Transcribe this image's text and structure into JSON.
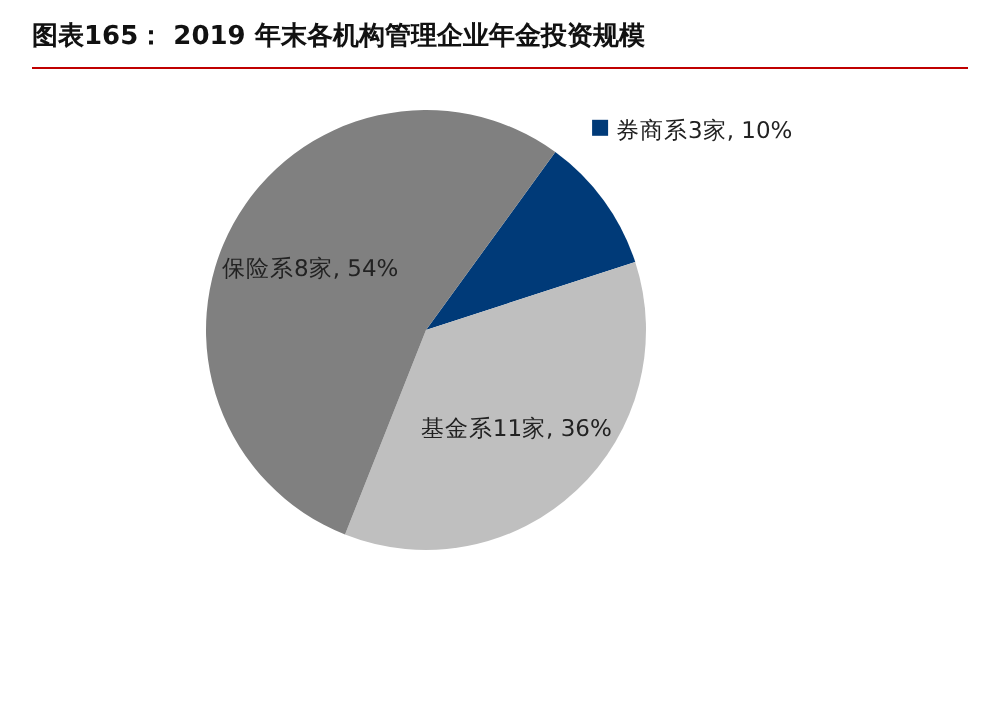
{
  "chart_data": {
    "type": "pie",
    "title": "图表165：  2019 年末各机构管理企业年金投资规模",
    "categories": [
      "券商系3家",
      "基金系11家",
      "保险系8家"
    ],
    "values": [
      10,
      36,
      54
    ],
    "value_labels": [
      "10%",
      "36%",
      "54%"
    ],
    "colors": [
      "#003a78",
      "#bfbfbf",
      "#808080"
    ]
  }
}
